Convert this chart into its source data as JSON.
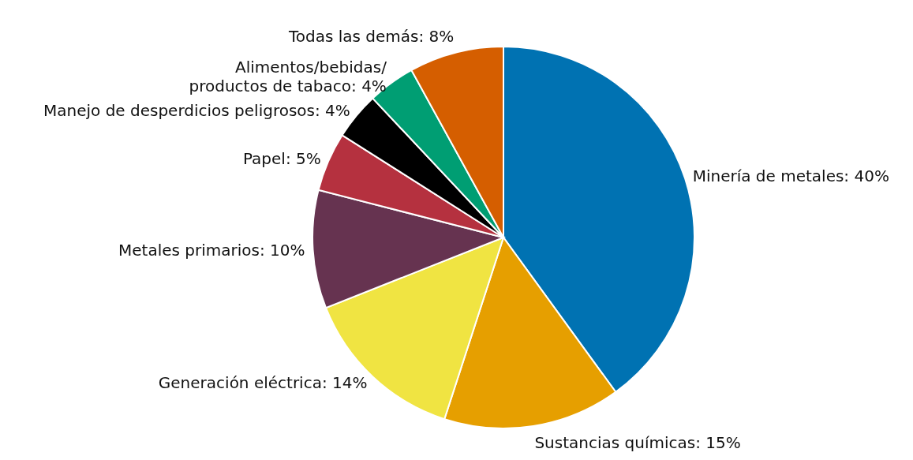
{
  "chart_data": {
    "type": "pie",
    "categories": [
      "Minería de metales",
      "Sustancias químicas",
      "Generación eléctrica",
      "Metales primarios",
      "Papel",
      "Manejo de desperdicios peligrosos",
      "Alimentos/bebidas/ productos de tabaco",
      "Todas las demás"
    ],
    "values": [
      40,
      15,
      14,
      10,
      5,
      4,
      4,
      8
    ],
    "value_labels": [
      "40%",
      "15%",
      "14%",
      "10%",
      "5%",
      "4%",
      "4%",
      "8%"
    ],
    "colors": [
      "#0072b2",
      "#e69f00",
      "#f0e442",
      "#663350",
      "#b5313f",
      "#000000",
      "#009e73",
      "#d55e00"
    ],
    "legend": false
  }
}
